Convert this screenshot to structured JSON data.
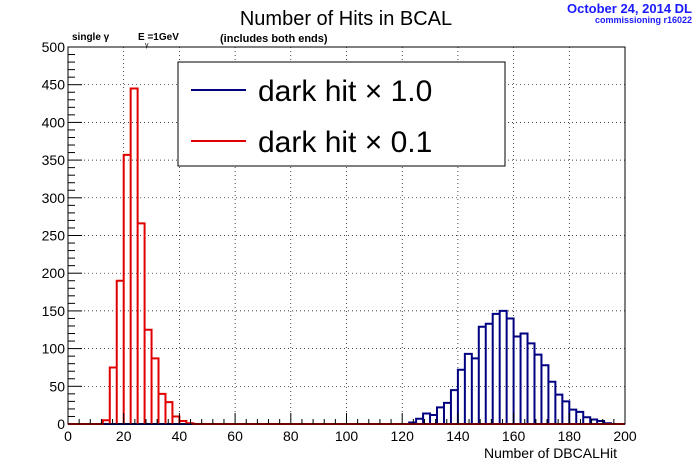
{
  "annotations": {
    "date": "October 24, 2014 DL",
    "run": "commissioning r16022",
    "particle": "single  γ",
    "energy": "E  =1GeV",
    "energy_subscript": "γ",
    "ends": "(includes both ends)"
  },
  "colors": {
    "series1": "#000080",
    "series2": "#e00000",
    "grid": "#000000"
  },
  "chart_data": {
    "type": "line",
    "style": "step-histogram",
    "title": "Number of Hits in BCAL",
    "xlabel": "Number of DBCALHit",
    "ylabel": "",
    "xlim": [
      0,
      200
    ],
    "ylim": [
      0,
      500
    ],
    "bin_width": 2.5,
    "grid": true,
    "legend_position": "top-center",
    "x_ticks": [
      "0",
      "20",
      "40",
      "60",
      "80",
      "100",
      "120",
      "140",
      "160",
      "180",
      "200"
    ],
    "y_ticks": [
      "0",
      "50",
      "100",
      "150",
      "200",
      "250",
      "300",
      "350",
      "400",
      "450",
      "500"
    ],
    "series": [
      {
        "name": "dark hit × 1.0",
        "bins": [
          {
            "x": 122.5,
            "y": 2
          },
          {
            "x": 125,
            "y": 7
          },
          {
            "x": 127.5,
            "y": 14
          },
          {
            "x": 130,
            "y": 12
          },
          {
            "x": 132.5,
            "y": 22
          },
          {
            "x": 135,
            "y": 28
          },
          {
            "x": 137.5,
            "y": 45
          },
          {
            "x": 140,
            "y": 72
          },
          {
            "x": 142.5,
            "y": 93
          },
          {
            "x": 145,
            "y": 87
          },
          {
            "x": 147.5,
            "y": 129
          },
          {
            "x": 150,
            "y": 133
          },
          {
            "x": 152.5,
            "y": 146
          },
          {
            "x": 155,
            "y": 150
          },
          {
            "x": 157.5,
            "y": 140
          },
          {
            "x": 160,
            "y": 116
          },
          {
            "x": 162.5,
            "y": 120
          },
          {
            "x": 165,
            "y": 107
          },
          {
            "x": 167.5,
            "y": 92
          },
          {
            "x": 170,
            "y": 78
          },
          {
            "x": 172.5,
            "y": 56
          },
          {
            "x": 175,
            "y": 39
          },
          {
            "x": 177.5,
            "y": 30
          },
          {
            "x": 180,
            "y": 19
          },
          {
            "x": 182.5,
            "y": 16
          },
          {
            "x": 185,
            "y": 9
          },
          {
            "x": 187.5,
            "y": 6
          },
          {
            "x": 190,
            "y": 4
          },
          {
            "x": 192.5,
            "y": 1
          }
        ]
      },
      {
        "name": "dark hit × 0.1",
        "bins": [
          {
            "x": 12.5,
            "y": 5
          },
          {
            "x": 15,
            "y": 75
          },
          {
            "x": 17.5,
            "y": 190
          },
          {
            "x": 20,
            "y": 357
          },
          {
            "x": 22.5,
            "y": 445
          },
          {
            "x": 25,
            "y": 266
          },
          {
            "x": 27.5,
            "y": 125
          },
          {
            "x": 30,
            "y": 87
          },
          {
            "x": 32.5,
            "y": 40
          },
          {
            "x": 35,
            "y": 29
          },
          {
            "x": 37.5,
            "y": 10
          },
          {
            "x": 40,
            "y": 4
          },
          {
            "x": 42.5,
            "y": 1
          }
        ]
      }
    ]
  }
}
